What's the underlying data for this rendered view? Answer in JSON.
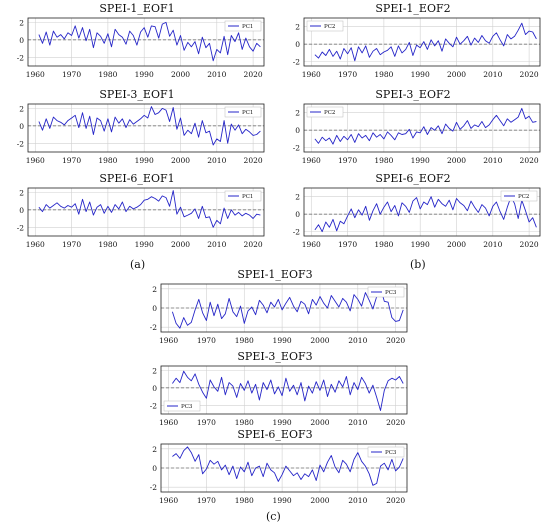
{
  "colors": {
    "line": "#2626c8",
    "zero_line": "#777777",
    "grid": "#d0d0d0",
    "frame": "#222222"
  },
  "panel_labels": {
    "a": "(a)",
    "b": "(b)",
    "c": "(c)"
  },
  "chart_data": [
    {
      "type": "line",
      "title": "SPEI-1_EOF1",
      "legend": "top-right",
      "series": [
        {
          "name": "PC1",
          "values": [
            0.6,
            -0.4,
            0.9,
            -0.6,
            1.0,
            0.3,
            0.6,
            0.1,
            0.8,
            0.5,
            1.6,
            0.2,
            1.4,
            -0.1,
            1.2,
            -0.9,
            0.8,
            0.4,
            -0.4,
            0.7,
            -0.8,
            1.2,
            0.6,
            0.3,
            -0.5,
            1.0,
            0.5,
            -0.6,
            0.9,
            1.4,
            0.3,
            1.6,
            1.5,
            0.2,
            1.8,
            2.0,
            0.4,
            1.1,
            -0.6,
            0.5,
            -1.2,
            -0.3,
            -0.8,
            -0.2,
            -1.6,
            0.3,
            -0.9,
            -0.4,
            -2.4,
            -1.1,
            -1.5,
            0.4,
            -1.7,
            0.5,
            -0.2,
            0.8,
            -1.1,
            0.2,
            -0.8,
            -1.3,
            -0.4,
            -0.8
          ]
        }
      ],
      "x_start": 1961,
      "xlim": [
        1958,
        2023
      ],
      "ylim": [
        -3,
        2.5
      ],
      "xticks": [
        1960,
        1970,
        1980,
        1990,
        2000,
        2010,
        2020
      ],
      "yticks": [
        2,
        0,
        -2
      ],
      "grid": true
    },
    {
      "type": "line",
      "title": "SPEI-3_EOF1",
      "legend": "top-right",
      "series": [
        {
          "name": "PC1",
          "values": [
            0.5,
            -0.5,
            0.8,
            -0.3,
            1.0,
            0.6,
            0.4,
            0.1,
            0.6,
            0.9,
            1.2,
            -0.2,
            1.5,
            -0.3,
            1.1,
            -1.0,
            0.9,
            0.6,
            -0.6,
            0.8,
            -0.7,
            1.0,
            0.3,
            0.8,
            -0.2,
            0.7,
            0.2,
            0.5,
            0.8,
            1.2,
            0.9,
            2.2,
            1.3,
            1.5,
            2.0,
            1.8,
            0.5,
            2.1,
            -0.4,
            0.9,
            -1.1,
            -0.5,
            -0.9,
            0.3,
            -1.3,
            0.6,
            -0.8,
            -0.6,
            -2.2,
            -1.5,
            -1.8,
            0.6,
            -2.0,
            0.2,
            -0.5,
            0.1,
            -0.9,
            -0.4,
            -0.7,
            -1.1,
            -1.0,
            -0.6
          ]
        }
      ],
      "x_start": 1961,
      "xlim": [
        1958,
        2023
      ],
      "ylim": [
        -3,
        2.5
      ],
      "xticks": [
        1960,
        1970,
        1980,
        1990,
        2000,
        2010,
        2020
      ],
      "yticks": [
        2,
        0,
        -2
      ],
      "grid": true
    },
    {
      "type": "line",
      "title": "SPEI-6_EOF1",
      "legend": "top-right",
      "series": [
        {
          "name": "PC1",
          "values": [
            0.3,
            -0.2,
            0.6,
            0.2,
            0.5,
            0.8,
            0.4,
            0.2,
            0.5,
            0.3,
            0.7,
            -0.5,
            1.2,
            -0.2,
            0.9,
            -0.6,
            0.3,
            0.6,
            -0.4,
            0.4,
            -0.3,
            0.6,
            0.1,
            0.9,
            -0.2,
            0.4,
            0.1,
            0.3,
            0.6,
            1.1,
            1.2,
            1.5,
            1.3,
            1.0,
            1.6,
            1.4,
            0.4,
            2.2,
            -0.5,
            0.3,
            -0.8,
            -0.6,
            -0.4,
            0.1,
            -1.0,
            0.4,
            -0.9,
            -0.8,
            -2.0,
            -1.2,
            -1.6,
            0.2,
            -1.0,
            0.0,
            -0.6,
            -0.3,
            -0.7,
            -0.4,
            -0.6,
            -1.0,
            -0.5,
            -0.6
          ]
        }
      ],
      "x_start": 1961,
      "xlim": [
        1958,
        2023
      ],
      "ylim": [
        -3,
        2.5
      ],
      "xticks": [
        1960,
        1970,
        1980,
        1990,
        2000,
        2010,
        2020
      ],
      "yticks": [
        2,
        0,
        -2
      ],
      "grid": true
    },
    {
      "type": "line",
      "title": "SPEI-1_EOF2",
      "legend": "top-left",
      "series": [
        {
          "name": "PC2",
          "values": [
            -1.2,
            -1.6,
            -0.9,
            -1.3,
            -0.6,
            -1.4,
            -0.8,
            -1.7,
            -0.5,
            -1.1,
            -0.4,
            -1.9,
            -0.3,
            -1.0,
            -0.2,
            -1.5,
            -0.8,
            -0.5,
            -1.2,
            -0.9,
            -0.7,
            -0.3,
            -1.4,
            -0.2,
            -1.0,
            -0.6,
            0.2,
            -1.3,
            -0.1,
            -0.4,
            0.3,
            -0.6,
            0.5,
            -0.2,
            0.4,
            -0.8,
            0.6,
            0.1,
            -0.3,
            0.8,
            0.0,
            0.4,
            0.9,
            -0.1,
            0.7,
            0.2,
            1.0,
            0.4,
            0.1,
            0.9,
            1.3,
            0.5,
            -0.2,
            1.1,
            0.6,
            0.9,
            1.6,
            2.4,
            1.1,
            1.5,
            1.4,
            0.6
          ]
        }
      ],
      "x_start": 1961,
      "xlim": [
        1958,
        2023
      ],
      "ylim": [
        -2.5,
        3
      ],
      "xticks": [
        1960,
        1970,
        1980,
        1990,
        2000,
        2010,
        2020
      ],
      "yticks": [
        2,
        0,
        -2
      ],
      "grid": true
    },
    {
      "type": "line",
      "title": "SPEI-3_EOF2",
      "legend": "top-left",
      "series": [
        {
          "name": "PC2",
          "values": [
            -1.0,
            -1.5,
            -0.8,
            -1.2,
            -0.9,
            -1.6,
            -0.6,
            -1.3,
            -0.7,
            -1.1,
            -0.5,
            -1.4,
            -0.4,
            -0.9,
            -0.6,
            -1.2,
            -0.3,
            -0.8,
            -0.5,
            -1.0,
            -0.2,
            -0.6,
            -1.1,
            -0.3,
            -0.5,
            -0.4,
            0.1,
            -0.9,
            -0.2,
            -0.3,
            0.4,
            -0.5,
            0.3,
            0.0,
            0.5,
            -0.4,
            0.7,
            0.2,
            -0.1,
            0.9,
            0.1,
            0.5,
            1.1,
            0.2,
            0.6,
            0.4,
            1.0,
            0.3,
            0.6,
            1.2,
            1.7,
            1.1,
            0.5,
            1.3,
            0.9,
            1.2,
            1.5,
            2.5,
            1.3,
            1.6,
            0.9,
            1.0
          ]
        }
      ],
      "x_start": 1961,
      "xlim": [
        1958,
        2023
      ],
      "ylim": [
        -2.5,
        3
      ],
      "xticks": [
        1960,
        1970,
        1980,
        1990,
        2000,
        2010,
        2020
      ],
      "yticks": [
        2,
        0,
        -2
      ],
      "grid": true
    },
    {
      "type": "line",
      "title": "SPEI-6_EOF2",
      "legend": "top-right",
      "series": [
        {
          "name": "PC2",
          "values": [
            -1.8,
            -1.2,
            -2.0,
            -0.9,
            -1.5,
            -0.6,
            -1.9,
            -0.8,
            -1.1,
            -0.2,
            0.6,
            -0.4,
            0.5,
            -0.1,
            0.9,
            -0.7,
            0.4,
            1.2,
            0.0,
            0.8,
            1.4,
            0.3,
            1.0,
            -0.2,
            1.3,
            0.9,
            0.2,
            1.5,
            1.9,
            0.6,
            1.4,
            1.1,
            2.0,
            0.8,
            1.7,
            1.2,
            0.9,
            1.6,
            0.5,
            1.8,
            1.3,
            1.0,
            0.4,
            1.5,
            0.8,
            0.2,
            1.1,
            0.7,
            -0.2,
            0.9,
            1.4,
            0.3,
            -0.6,
            0.8,
            2.0,
            1.2,
            -0.5,
            1.6,
            0.4,
            -0.9,
            -0.4,
            -1.5
          ]
        }
      ],
      "x_start": 1961,
      "xlim": [
        1958,
        2023
      ],
      "ylim": [
        -2.5,
        3
      ],
      "xticks": [
        1960,
        1970,
        1980,
        1990,
        2000,
        2010,
        2020
      ],
      "yticks": [
        2,
        0,
        -2
      ],
      "grid": true
    },
    {
      "type": "line",
      "title": "SPEI-1_EOF3",
      "legend": "top-right",
      "series": [
        {
          "name": "PC3",
          "values": [
            -0.4,
            -1.6,
            -2.1,
            -1.0,
            -1.8,
            -1.5,
            -0.2,
            0.9,
            -0.5,
            -1.3,
            0.6,
            -0.8,
            0.4,
            -1.1,
            -0.6,
            1.0,
            -0.4,
            -0.9,
            0.2,
            -1.6,
            -0.3,
            0.1,
            -0.7,
            0.8,
            0.3,
            -0.5,
            0.6,
            0.1,
            0.9,
            -0.2,
            0.5,
            1.1,
            0.2,
            -0.4,
            0.7,
            0.4,
            -0.6,
            0.9,
            0.3,
            1.2,
            0.5,
            0.0,
            1.3,
            0.7,
            0.1,
            1.0,
            0.6,
            -0.3,
            1.4,
            0.9,
            0.2,
            1.6,
            0.8,
            -0.1,
            1.2,
            2.1,
            0.7,
            0.6,
            -1.0,
            -1.4,
            -1.3,
            -0.2
          ]
        }
      ],
      "x_start": 1961,
      "xlim": [
        1958,
        2023
      ],
      "ylim": [
        -2.5,
        2.5
      ],
      "xticks": [
        1960,
        1970,
        1980,
        1990,
        2000,
        2010,
        2020
      ],
      "yticks": [
        2,
        0,
        -2
      ],
      "grid": true
    },
    {
      "type": "line",
      "title": "SPEI-3_EOF3",
      "legend": "bottom-left",
      "series": [
        {
          "name": "PC3",
          "values": [
            0.5,
            1.1,
            0.6,
            1.9,
            1.2,
            0.8,
            1.6,
            0.4,
            -0.5,
            -1.2,
            0.9,
            0.1,
            -0.4,
            1.2,
            -0.8,
            0.6,
            0.2,
            -1.1,
            0.5,
            -0.3,
            0.8,
            -0.6,
            0.4,
            -1.4,
            0.6,
            -0.2,
            0.9,
            -0.7,
            0.1,
            -0.9,
            1.1,
            -0.4,
            0.3,
            -0.8,
            0.6,
            -1.5,
            0.2,
            -0.6,
            0.7,
            -0.3,
            0.9,
            -1.0,
            0.4,
            -0.5,
            0.8,
            0.1,
            1.3,
            -0.8,
            0.6,
            -0.2,
            1.2,
            0.5,
            -0.6,
            0.3,
            -1.1,
            -2.6,
            -0.3,
            0.8,
            1.1,
            0.9,
            1.3,
            0.5
          ]
        }
      ],
      "x_start": 1961,
      "xlim": [
        1958,
        2023
      ],
      "ylim": [
        -3,
        2.5
      ],
      "xticks": [
        1960,
        1970,
        1980,
        1990,
        2000,
        2010,
        2020
      ],
      "yticks": [
        2,
        0,
        -2
      ],
      "grid": true
    },
    {
      "type": "line",
      "title": "SPEI-6_EOF3",
      "legend": "top-right",
      "series": [
        {
          "name": "PC3",
          "values": [
            1.2,
            1.5,
            1.0,
            1.8,
            2.2,
            1.6,
            0.7,
            1.4,
            -0.6,
            -0.1,
            0.8,
            0.4,
            0.7,
            -0.2,
            0.3,
            -0.7,
            0.2,
            -1.1,
            0.1,
            -0.4,
            0.6,
            -0.8,
            0.0,
            0.2,
            -0.9,
            0.5,
            -0.2,
            -0.5,
            -1.4,
            -0.7,
            0.2,
            -0.3,
            -0.8,
            -0.5,
            -1.2,
            -0.6,
            -0.9,
            -0.2,
            -1.3,
            0.3,
            -0.4,
            0.6,
            1.3,
            0.1,
            -0.5,
            0.8,
            0.4,
            -0.4,
            0.9,
            1.6,
            0.7,
            0.2,
            -0.6,
            -1.8,
            -1.6,
            0.2,
            0.5,
            -0.2,
            0.9,
            -0.3,
            0.1,
            1.0
          ]
        }
      ],
      "x_start": 1961,
      "xlim": [
        1958,
        2023
      ],
      "ylim": [
        -2.5,
        2.5
      ],
      "xticks": [
        1960,
        1970,
        1980,
        1990,
        2000,
        2010,
        2020
      ],
      "yticks": [
        2,
        0,
        -2
      ],
      "grid": true
    }
  ]
}
